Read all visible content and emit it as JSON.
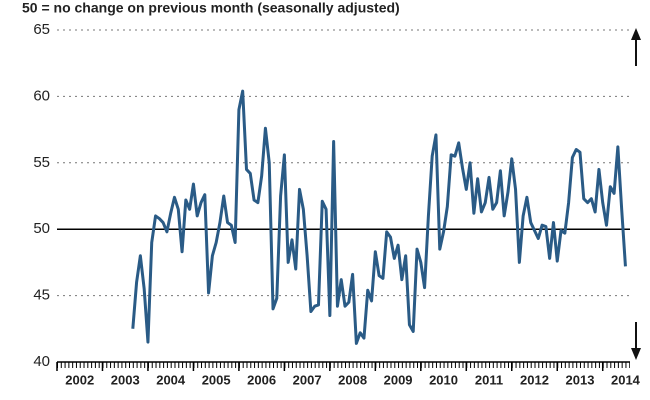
{
  "chart_data": {
    "type": "line",
    "title": "50 = no change on previous month (seasonally adjusted)",
    "color": "#2a5b86",
    "reference_line": 50,
    "xlim": [
      2002,
      2014.6
    ],
    "xticks": [
      2002,
      2003,
      2004,
      2005,
      2006,
      2007,
      2008,
      2009,
      2010,
      2011,
      2012,
      2013,
      2014
    ],
    "ylim": [
      40,
      65
    ],
    "yticks": [
      40,
      45,
      50,
      55,
      60,
      65
    ],
    "grid": true,
    "x": [
      2003.667,
      2003.75,
      2003.833,
      2003.917,
      2004,
      2004.083,
      2004.167,
      2004.25,
      2004.333,
      2004.417,
      2004.5,
      2004.583,
      2004.667,
      2004.75,
      2004.833,
      2004.917,
      2005,
      2005.083,
      2005.167,
      2005.25,
      2005.333,
      2005.417,
      2005.5,
      2005.583,
      2005.667,
      2005.75,
      2005.833,
      2005.917,
      2006,
      2006.083,
      2006.167,
      2006.25,
      2006.333,
      2006.417,
      2006.5,
      2006.583,
      2006.667,
      2006.75,
      2006.833,
      2006.917,
      2007,
      2007.083,
      2007.167,
      2007.25,
      2007.333,
      2007.417,
      2007.5,
      2007.583,
      2007.667,
      2007.75,
      2007.833,
      2007.917,
      2008,
      2008.083,
      2008.167,
      2008.25,
      2008.333,
      2008.417,
      2008.5,
      2008.583,
      2008.667,
      2008.75,
      2008.833,
      2008.917,
      2009,
      2009.083,
      2009.167,
      2009.25,
      2009.333,
      2009.417,
      2009.5,
      2009.583,
      2009.667,
      2009.75,
      2009.833,
      2009.917,
      2010,
      2010.083,
      2010.167,
      2010.25,
      2010.333,
      2010.417,
      2010.5,
      2010.583,
      2010.667,
      2010.75,
      2010.833,
      2010.917,
      2011,
      2011.083,
      2011.167,
      2011.25,
      2011.333,
      2011.417,
      2011.5,
      2011.583,
      2011.667,
      2011.75,
      2011.833,
      2011.917,
      2012,
      2012.083,
      2012.167,
      2012.25,
      2012.333,
      2012.417,
      2012.5,
      2012.583,
      2012.667,
      2012.75,
      2012.833,
      2012.917,
      2013,
      2013.083,
      2013.167,
      2013.25,
      2013.333,
      2013.417,
      2013.5,
      2013.583,
      2013.667,
      2013.75,
      2013.833,
      2013.917,
      2014,
      2014.083,
      2014.167,
      2014.25,
      2014.333,
      2014.417,
      2014.5
    ],
    "values": [
      42.5,
      46,
      48,
      45.5,
      41.5,
      49,
      51,
      50.8,
      50.5,
      49.8,
      51.2,
      52.4,
      51.5,
      48.3,
      52.2,
      51.5,
      53.4,
      51,
      52,
      52.6,
      45.2,
      48,
      49,
      50.5,
      52.5,
      50.5,
      50.3,
      49,
      59,
      60.4,
      54.5,
      54.2,
      52.2,
      52,
      54,
      57.6,
      55,
      44,
      44.8,
      52.5,
      55.6,
      47.5,
      49.2,
      47,
      53,
      51.5,
      48,
      43.8,
      44.2,
      44.3,
      52.1,
      51.5,
      43.5,
      56.6,
      44.2,
      46.2,
      44.2,
      44.5,
      46.6,
      41.4,
      42.2,
      41.8,
      45.4,
      44.6,
      48.3,
      46.5,
      46.3,
      49.8,
      49.4,
      47.8,
      48.8,
      46.2,
      48,
      42.8,
      42.3,
      48.5,
      47.5,
      45.6,
      51,
      55.5,
      57.1,
      48.5,
      49.8,
      51.7,
      55.6,
      55.5,
      56.5,
      54.6,
      53,
      55,
      51.2,
      53.8,
      51.3,
      52,
      53.9,
      51.5,
      52,
      54.4,
      51,
      52.8,
      55.3,
      53,
      47.5,
      51,
      52.4,
      50.5,
      49.9,
      49.3,
      50.3,
      50.2,
      47.8,
      50.5,
      47.6,
      49.9,
      49.7,
      52,
      55.4,
      56,
      55.8,
      52.3,
      52,
      52.3,
      51.3,
      54.5,
      52,
      50.3,
      53.2,
      52.7,
      56.2,
      51.5,
      47.2
    ]
  }
}
